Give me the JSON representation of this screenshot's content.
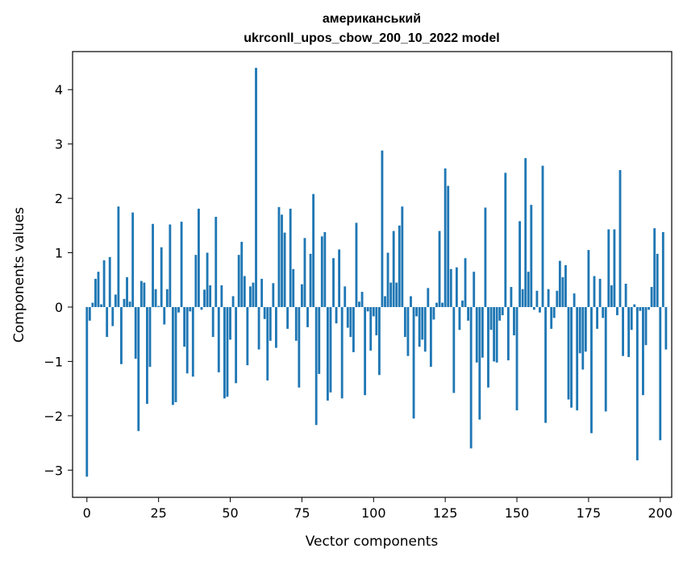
{
  "chart_data": {
    "type": "bar",
    "title_line1": "американський",
    "title_line2": "ukrconll_upos_cbow_200_10_2022 model",
    "xlabel": "Vector components",
    "ylabel": "Components values",
    "xlim": [
      -5,
      204
    ],
    "ylim": [
      -3.5,
      4.7
    ],
    "xticks": [
      0,
      25,
      50,
      75,
      100,
      125,
      150,
      175,
      200
    ],
    "yticks": [
      -3,
      -2,
      -1,
      0,
      1,
      2,
      3,
      4
    ],
    "bar_color": "#1f77b4",
    "grid": false,
    "values": [
      -3.12,
      -0.25,
      0.08,
      0.52,
      0.65,
      0.05,
      0.86,
      -0.55,
      0.92,
      -0.35,
      0.23,
      1.85,
      -1.05,
      0.15,
      0.55,
      0.1,
      1.74,
      -0.95,
      -2.28,
      0.48,
      0.45,
      -1.78,
      -1.1,
      1.53,
      0.33,
      0.02,
      1.1,
      -0.32,
      0.33,
      1.52,
      -1.8,
      -1.75,
      -0.1,
      1.57,
      -0.73,
      -1.22,
      -0.08,
      -1.28,
      0.96,
      1.81,
      -0.05,
      0.32,
      1.0,
      0.4,
      -0.55,
      1.66,
      -1.2,
      0.4,
      -1.68,
      -1.65,
      -0.6,
      0.2,
      -1.4,
      0.96,
      1.2,
      0.57,
      -1.07,
      0.38,
      0.45,
      4.4,
      -0.78,
      0.52,
      -0.22,
      -1.35,
      -0.62,
      0.44,
      -0.75,
      1.84,
      1.7,
      1.37,
      -0.4,
      1.81,
      0.7,
      -0.62,
      -1.48,
      0.42,
      1.27,
      -0.37,
      0.98,
      2.08,
      -2.17,
      -1.23,
      1.3,
      1.38,
      -1.72,
      -1.57,
      0.9,
      -0.3,
      1.06,
      -1.68,
      0.38,
      -0.38,
      -0.55,
      -0.83,
      1.55,
      0.1,
      0.28,
      -1.62,
      -0.08,
      -0.8,
      -0.17,
      -0.52,
      -1.25,
      2.88,
      0.2,
      1.0,
      0.45,
      1.4,
      0.45,
      1.5,
      1.85,
      -0.55,
      -0.9,
      0.2,
      -2.05,
      -0.17,
      -0.73,
      -0.6,
      -0.82,
      0.35,
      -1.1,
      -0.23,
      0.08,
      1.4,
      0.08,
      2.55,
      2.23,
      0.7,
      -1.58,
      0.73,
      -0.42,
      0.12,
      0.9,
      -0.25,
      -2.6,
      0.65,
      -1.02,
      -2.07,
      -0.93,
      1.83,
      -1.48,
      -0.42,
      -1.0,
      -1.02,
      -0.25,
      -0.15,
      2.47,
      -0.98,
      0.37,
      -0.52,
      -1.9,
      1.58,
      0.33,
      2.74,
      0.65,
      1.88,
      -0.05,
      0.3,
      -0.1,
      2.6,
      -2.13,
      0.33,
      -0.4,
      -0.2,
      0.3,
      0.85,
      0.55,
      0.77,
      -1.7,
      -1.85,
      0.25,
      -1.9,
      -0.85,
      -1.15,
      -0.82,
      1.05,
      -2.32,
      0.57,
      -0.4,
      0.52,
      -0.2,
      -1.92,
      1.43,
      0.4,
      1.43,
      -0.15,
      2.52,
      -0.9,
      0.43,
      -0.92,
      -0.42,
      0.05,
      -2.82,
      -0.07,
      -1.62,
      -0.7,
      -0.05,
      0.37,
      1.45,
      0.98,
      -2.45,
      1.38,
      -0.78
    ]
  }
}
